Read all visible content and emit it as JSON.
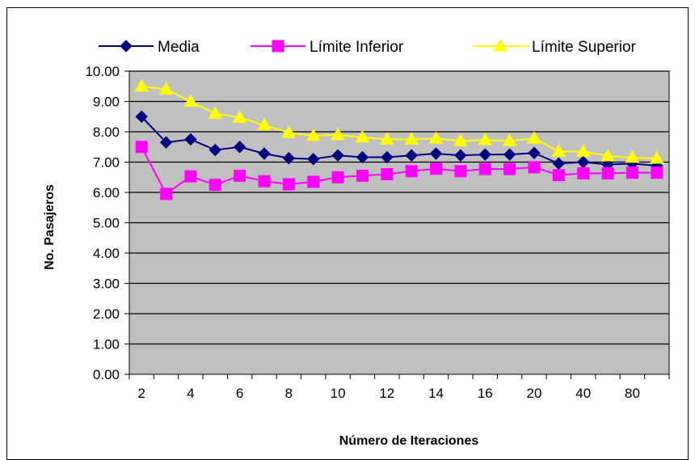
{
  "chart_data": {
    "type": "line",
    "title": "",
    "xlabel": "Número de Iteraciones",
    "ylabel": "No. Pasajeros",
    "ylim": [
      0,
      10
    ],
    "yticks": [
      "0.00",
      "1.00",
      "2.00",
      "3.00",
      "4.00",
      "5.00",
      "6.00",
      "7.00",
      "8.00",
      "9.00",
      "10.00"
    ],
    "categories": [
      "2",
      "",
      "4",
      "",
      "6",
      "",
      "8",
      "",
      "10",
      "",
      "12",
      "",
      "14",
      "",
      "16",
      "",
      "20",
      "",
      "40",
      "",
      "80",
      ""
    ],
    "grid": "horizontal",
    "plot_background": "#c0c0c0",
    "legend_position": "top",
    "series": [
      {
        "name": "Media",
        "color": "#000080",
        "marker": "diamond",
        "values": [
          8.5,
          7.65,
          7.75,
          7.4,
          7.5,
          7.28,
          7.13,
          7.1,
          7.22,
          7.16,
          7.16,
          7.22,
          7.28,
          7.22,
          7.25,
          7.25,
          7.3,
          6.95,
          7.0,
          6.92,
          6.95,
          6.88
        ]
      },
      {
        "name": "Límite Inferior",
        "color": "#ff00ff",
        "marker": "square",
        "values": [
          7.5,
          5.95,
          6.53,
          6.25,
          6.55,
          6.37,
          6.27,
          6.35,
          6.5,
          6.55,
          6.6,
          6.7,
          6.78,
          6.7,
          6.77,
          6.77,
          6.83,
          6.57,
          6.63,
          6.63,
          6.65,
          6.65
        ]
      },
      {
        "name": "Límite Superior",
        "color": "#ffff00",
        "marker": "triangle",
        "values": [
          9.5,
          9.4,
          9.0,
          8.6,
          8.47,
          8.22,
          7.97,
          7.87,
          7.9,
          7.82,
          7.75,
          7.75,
          7.78,
          7.7,
          7.73,
          7.7,
          7.78,
          7.35,
          7.35,
          7.2,
          7.15,
          7.12
        ]
      }
    ]
  }
}
